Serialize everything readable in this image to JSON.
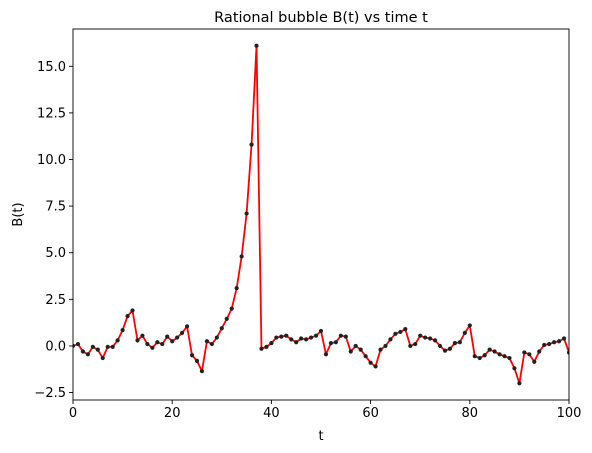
{
  "chart_data": {
    "type": "line",
    "title": "Rational bubble B(t) vs time t",
    "xlabel": "t",
    "ylabel": "B(t)",
    "xlim": [
      0,
      100
    ],
    "ylim": [
      -2.9,
      17.0
    ],
    "xticks": [
      0,
      20,
      40,
      60,
      80,
      100
    ],
    "xtick_labels": [
      "0",
      "20",
      "40",
      "60",
      "80",
      "100"
    ],
    "yticks": [
      -2.5,
      0.0,
      2.5,
      5.0,
      7.5,
      10.0,
      12.5,
      15.0
    ],
    "ytick_labels": [
      "−2.5",
      "0.0",
      "2.5",
      "5.0",
      "7.5",
      "10.0",
      "12.5",
      "15.0"
    ],
    "grid": false,
    "legend": "none",
    "colors": {
      "line": "#ff0000",
      "marker": "#222222"
    },
    "series": [
      {
        "line_color": "#ff0000",
        "marker_color": "#222222",
        "x": [
          0,
          1,
          2,
          3,
          4,
          5,
          6,
          7,
          8,
          9,
          10,
          11,
          12,
          13,
          14,
          15,
          16,
          17,
          18,
          19,
          20,
          21,
          22,
          23,
          24,
          25,
          26,
          27,
          28,
          29,
          30,
          31,
          32,
          33,
          34,
          35,
          36,
          37,
          38,
          39,
          40,
          41,
          42,
          43,
          44,
          45,
          46,
          47,
          48,
          49,
          50,
          51,
          52,
          53,
          54,
          55,
          56,
          57,
          58,
          59,
          60,
          61,
          62,
          63,
          64,
          65,
          66,
          67,
          68,
          69,
          70,
          71,
          72,
          73,
          74,
          75,
          76,
          77,
          78,
          79,
          80,
          81,
          82,
          83,
          84,
          85,
          86,
          87,
          88,
          89,
          90,
          91,
          92,
          93,
          94,
          95,
          96,
          97,
          98,
          99,
          100
        ],
        "values": [
          0.0,
          0.1,
          -0.3,
          -0.45,
          -0.05,
          -0.2,
          -0.65,
          -0.05,
          -0.05,
          0.3,
          0.85,
          1.6,
          1.9,
          0.3,
          0.55,
          0.1,
          -0.1,
          0.2,
          0.1,
          0.5,
          0.25,
          0.45,
          0.7,
          1.05,
          -0.5,
          -0.8,
          -1.35,
          0.25,
          0.1,
          0.45,
          0.95,
          1.45,
          2.0,
          3.1,
          4.8,
          7.1,
          10.8,
          16.1,
          -0.15,
          -0.05,
          0.15,
          0.45,
          0.5,
          0.55,
          0.35,
          0.2,
          0.4,
          0.35,
          0.45,
          0.55,
          0.8,
          -0.45,
          0.15,
          0.2,
          0.55,
          0.5,
          -0.3,
          0.0,
          -0.2,
          -0.55,
          -0.9,
          -1.1,
          -0.2,
          0.0,
          0.35,
          0.65,
          0.75,
          0.9,
          0.0,
          0.1,
          0.55,
          0.45,
          0.4,
          0.3,
          0.0,
          -0.25,
          -0.15,
          0.15,
          0.2,
          0.7,
          1.1,
          -0.55,
          -0.65,
          -0.5,
          -0.2,
          -0.3,
          -0.45,
          -0.55,
          -0.65,
          -1.2,
          -2.0,
          -0.35,
          -0.45,
          -0.85,
          -0.3,
          0.05,
          0.1,
          0.2,
          0.25,
          0.4,
          -0.35
        ]
      }
    ]
  }
}
